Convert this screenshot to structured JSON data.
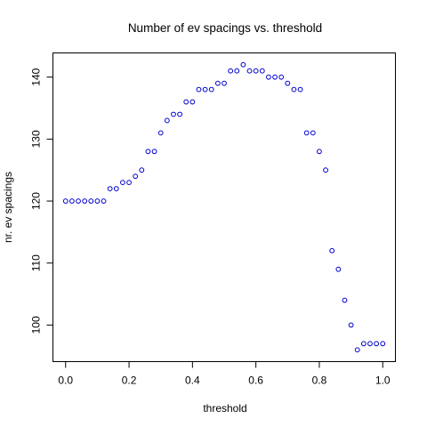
{
  "chart_data": {
    "type": "scatter",
    "title": "Number of ev spacings vs. threshold",
    "xlabel": "threshold",
    "ylabel": "nr. ev spacings",
    "xlim": [
      -0.04,
      1.04
    ],
    "ylim": [
      94.1,
      143.9
    ],
    "xticks": [
      0.0,
      0.2,
      0.4,
      0.6,
      0.8,
      1.0
    ],
    "xtick_labels": [
      "0.0",
      "0.2",
      "0.4",
      "0.6",
      "0.8",
      "1.0"
    ],
    "yticks": [
      100,
      110,
      120,
      130,
      140
    ],
    "ytick_labels": [
      "100",
      "110",
      "120",
      "130",
      "140"
    ],
    "grid": false,
    "marker_color": "#0000cd",
    "x": [
      0.0,
      0.02,
      0.04,
      0.06,
      0.08,
      0.1,
      0.12,
      0.14,
      0.16,
      0.18,
      0.2,
      0.22,
      0.24,
      0.26,
      0.28,
      0.3,
      0.32,
      0.34,
      0.36,
      0.38,
      0.4,
      0.42,
      0.44,
      0.46,
      0.48,
      0.5,
      0.52,
      0.54,
      0.56,
      0.58,
      0.6,
      0.62,
      0.64,
      0.66,
      0.68,
      0.7,
      0.72,
      0.74,
      0.76,
      0.78,
      0.8,
      0.82,
      0.84,
      0.86,
      0.88,
      0.9,
      0.92,
      0.94,
      0.96,
      0.98,
      1.0
    ],
    "y": [
      120,
      120,
      120,
      120,
      120,
      120,
      120,
      122,
      122,
      123,
      123,
      124,
      125,
      128,
      128,
      131,
      133,
      134,
      134,
      136,
      136,
      138,
      138,
      138,
      139,
      139,
      141,
      141,
      142,
      141,
      141,
      141,
      140,
      140,
      140,
      139,
      138,
      138,
      131,
      131,
      128,
      125,
      112,
      109,
      104,
      100,
      96,
      97,
      97,
      97,
      97
    ]
  }
}
